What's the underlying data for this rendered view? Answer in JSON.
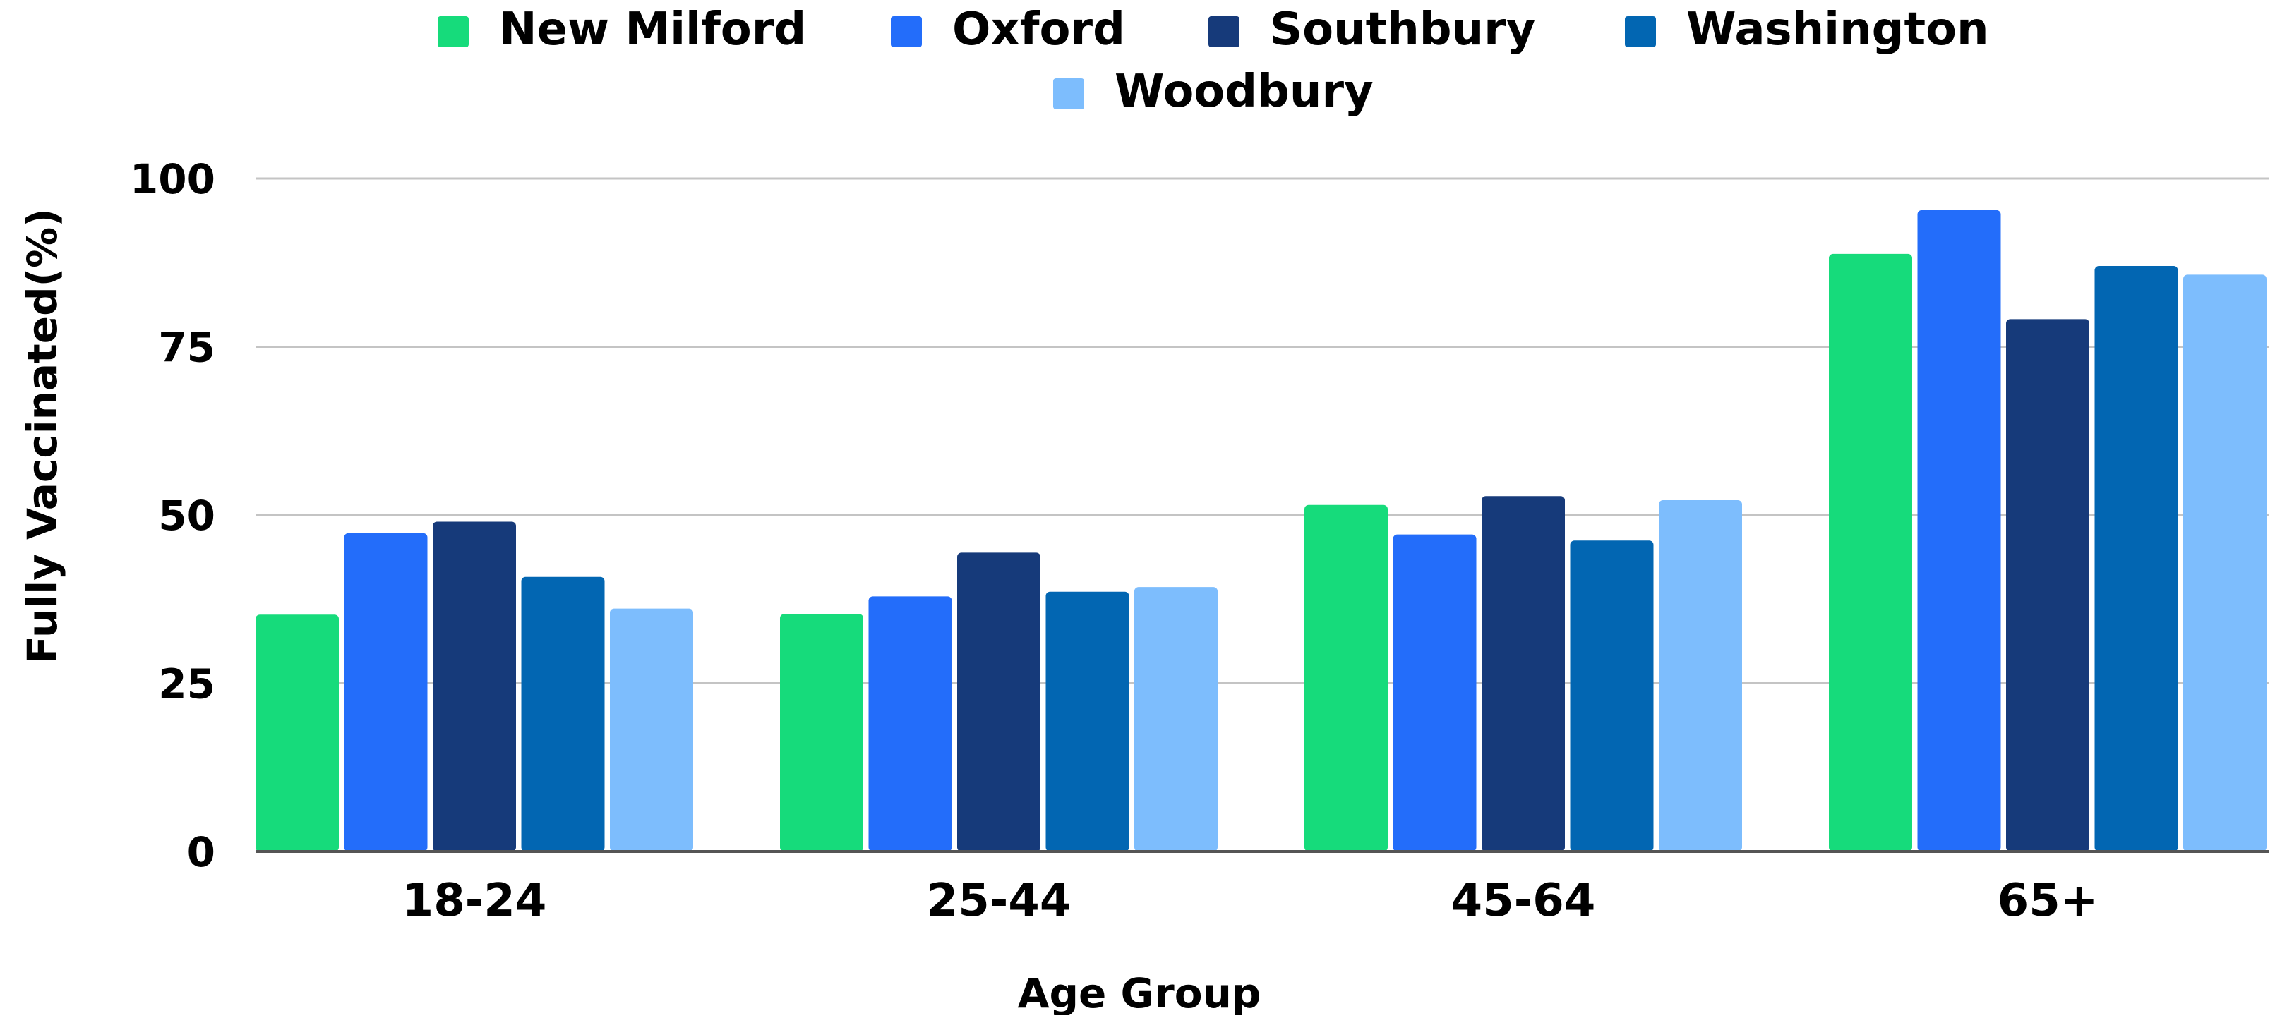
{
  "chart_data": {
    "type": "bar",
    "xlabel": "Age Group",
    "ylabel": "Fully Vaccinated(%)",
    "ylim": [
      0,
      100
    ],
    "yticks": [
      "0",
      "25",
      "50",
      "75",
      "100"
    ],
    "grid": true,
    "legend_position": "top",
    "categories": [
      "18-24",
      "25-44",
      "45-64",
      "65+"
    ],
    "series": [
      {
        "name": "New Milford",
        "color": "#16db7b",
        "values": [
          35.2,
          35.3,
          51.5,
          88.8
        ]
      },
      {
        "name": "Oxford",
        "color": "#236dfa",
        "values": [
          47.3,
          37.9,
          47.1,
          95.3
        ]
      },
      {
        "name": "Southbury",
        "color": "#163a7a",
        "values": [
          49.0,
          44.4,
          52.8,
          79.1
        ]
      },
      {
        "name": "Washington",
        "color": "#0266b2",
        "values": [
          40.8,
          38.6,
          46.2,
          87.0
        ]
      },
      {
        "name": "Woodbury",
        "color": "#7dbdfd",
        "values": [
          36.1,
          39.3,
          52.2,
          85.7
        ]
      }
    ]
  }
}
